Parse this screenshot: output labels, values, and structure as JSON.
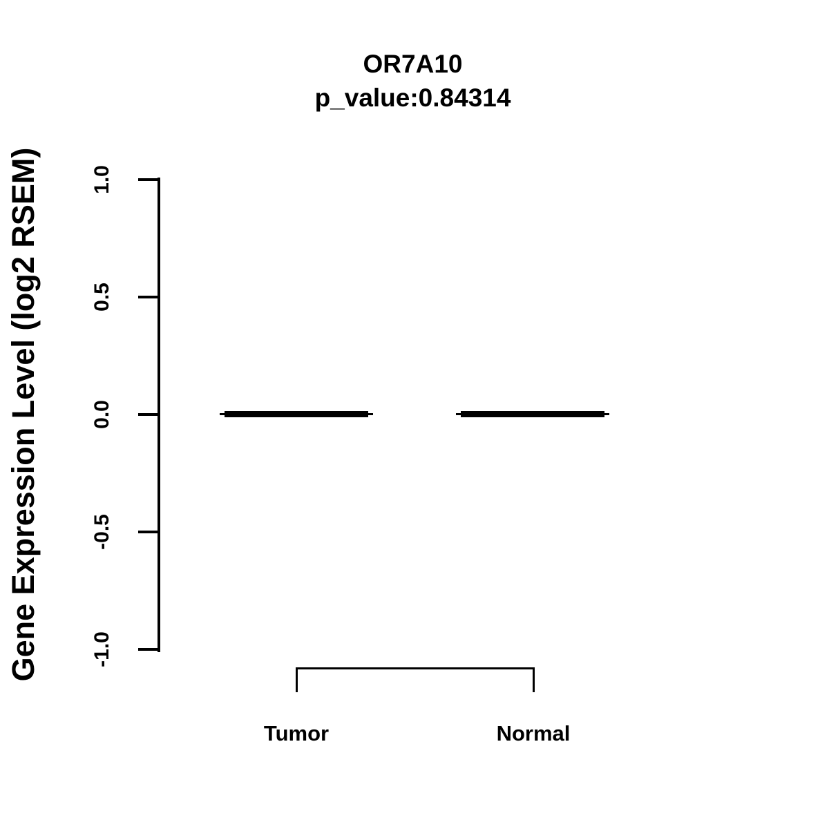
{
  "page": {
    "background_color": "#ffffff",
    "foreground_color": "#000000"
  },
  "chart_data": {
    "type": "boxplot",
    "title": "OR7A10",
    "subtitle": "p_value:0.84314",
    "gene": "OR7A10",
    "p_value": 0.84314,
    "ylabel": "Gene Expression Level (log2 RSEM)",
    "xlabel": "",
    "ylim": [
      -1.0,
      1.0
    ],
    "ytick_labels": [
      "1.0",
      "0.5",
      "0.0",
      "-0.5",
      "-1.0"
    ],
    "ytick_values": [
      1.0,
      0.5,
      0.0,
      -0.5,
      -1.0
    ],
    "categories": [
      "Tumor",
      "Normal"
    ],
    "series": [
      {
        "name": "Tumor",
        "median": 0.0,
        "q1": 0.0,
        "q3": 0.0,
        "whisker_low": 0.0,
        "whisker_high": 0.0
      },
      {
        "name": "Normal",
        "median": 0.0,
        "q1": 0.0,
        "q3": 0.0,
        "whisker_low": 0.0,
        "whisker_high": 0.0
      }
    ],
    "comparison_bracket": {
      "from": "Tumor",
      "to": "Normal"
    },
    "grid": false,
    "legend": "none",
    "colors": {
      "box": "#000000",
      "axis": "#000000",
      "text": "#000000"
    }
  }
}
